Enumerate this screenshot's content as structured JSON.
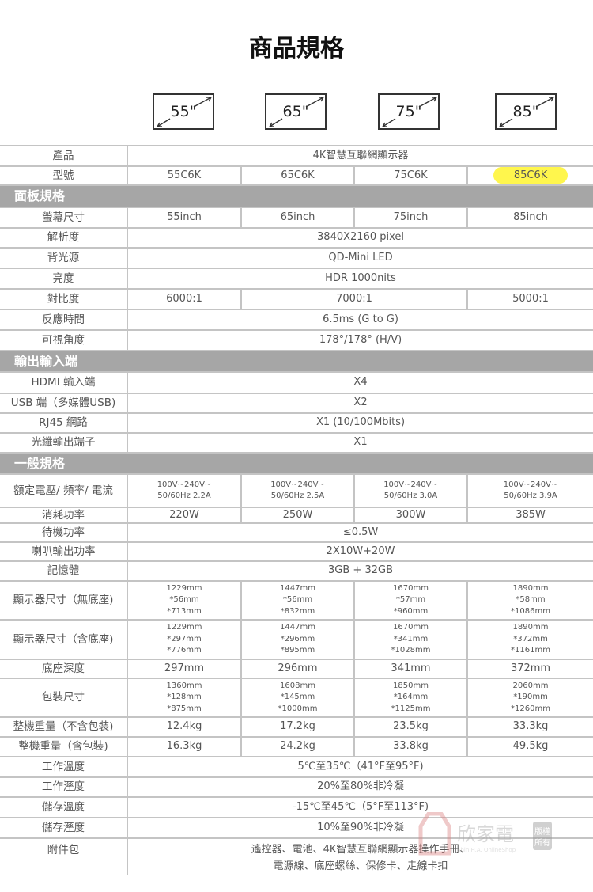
{
  "title": "商品規格",
  "sizes": [
    "55\"",
    "65\"",
    "75\"",
    "85\""
  ],
  "highlight_color": "#fff64d",
  "header_color": "#a6a6a6",
  "rows": [
    {
      "label": "產品",
      "cells": [
        {
          "t": "4K智慧互聯網顯示器",
          "span": 4
        }
      ]
    },
    {
      "label": "型號",
      "cells": [
        {
          "t": "55C6K"
        },
        {
          "t": "65C6K"
        },
        {
          "t": "75C6K"
        },
        {
          "t": "85C6K",
          "hl": true
        }
      ]
    },
    {
      "section": "面板規格"
    },
    {
      "label": "螢幕尺寸",
      "cells": [
        {
          "t": "55inch"
        },
        {
          "t": "65inch"
        },
        {
          "t": "75inch"
        },
        {
          "t": "85inch"
        }
      ]
    },
    {
      "label": "解析度",
      "cells": [
        {
          "t": "3840X2160 pixel",
          "span": 4
        }
      ]
    },
    {
      "label": "背光源",
      "cells": [
        {
          "t": "QD-Mini LED",
          "span": 4
        }
      ]
    },
    {
      "label": "亮度",
      "cells": [
        {
          "t": "HDR 1000nits",
          "span": 4
        }
      ]
    },
    {
      "label": "對比度",
      "cells": [
        {
          "t": "6000:1"
        },
        {
          "t": "7000:1",
          "span": 2
        },
        {
          "t": "5000:1"
        }
      ]
    },
    {
      "label": "反應時間",
      "cells": [
        {
          "t": "6.5ms (G to G)",
          "span": 4
        }
      ]
    },
    {
      "label": "可視角度",
      "cells": [
        {
          "t": "178°/178° (H/V)",
          "span": 4
        }
      ]
    },
    {
      "section": "輸出輸入端"
    },
    {
      "label": "HDMI 輸入端",
      "cells": [
        {
          "t": "X4",
          "span": 4
        }
      ]
    },
    {
      "label": "USB 端（多媒體USB)",
      "cells": [
        {
          "t": "X2",
          "span": 4
        }
      ]
    },
    {
      "label": "RJ45 網路",
      "cells": [
        {
          "t": "X1 (10/100Mbits)",
          "span": 4
        }
      ]
    },
    {
      "label": "光纖輸出端子",
      "cells": [
        {
          "t": "X1",
          "span": 4
        }
      ]
    },
    {
      "section": "一般規格"
    },
    {
      "label": "額定電壓/ 頻率/ 電流",
      "small": true,
      "cells": [
        {
          "t": "100V~240V~\n50/60Hz 2.2A"
        },
        {
          "t": "100V~240V~\n50/60Hz 2.5A"
        },
        {
          "t": "100V~240V~\n50/60Hz 3.0A"
        },
        {
          "t": "100V~240V~\n50/60Hz 3.9A"
        }
      ]
    },
    {
      "label": "消耗功率",
      "cells": [
        {
          "t": "220W"
        },
        {
          "t": "250W"
        },
        {
          "t": "300W"
        },
        {
          "t": "385W"
        }
      ]
    },
    {
      "label": "待機功率",
      "cells": [
        {
          "t": "≤0.5W",
          "span": 4
        }
      ]
    },
    {
      "label": "喇叭輸出功率",
      "cells": [
        {
          "t": "2X10W+20W",
          "span": 4
        }
      ]
    },
    {
      "label": "記憶體",
      "cells": [
        {
          "t": "3GB + 32GB",
          "span": 4
        }
      ]
    },
    {
      "label": "顯示器尺寸（無底座)",
      "small": true,
      "cells": [
        {
          "t": "1229mm\n*56mm\n*713mm"
        },
        {
          "t": "1447mm\n*56mm\n*832mm"
        },
        {
          "t": "1670mm\n*57mm\n*960mm"
        },
        {
          "t": "1890mm\n*58mm\n*1086mm"
        }
      ]
    },
    {
      "label": "顯示器尺寸（含底座)",
      "small": true,
      "cells": [
        {
          "t": "1229mm\n*297mm\n*776mm"
        },
        {
          "t": "1447mm\n*296mm\n*895mm"
        },
        {
          "t": "1670mm\n*341mm\n*1028mm"
        },
        {
          "t": "1890mm\n*372mm\n*1161mm"
        }
      ]
    },
    {
      "label": "底座深度",
      "cells": [
        {
          "t": "297mm"
        },
        {
          "t": "296mm"
        },
        {
          "t": "341mm"
        },
        {
          "t": "372mm"
        }
      ]
    },
    {
      "label": "包裝尺寸",
      "small": true,
      "cells": [
        {
          "t": "1360mm\n*128mm\n*875mm"
        },
        {
          "t": "1608mm\n*145mm\n*1000mm"
        },
        {
          "t": "1850mm\n*164mm\n*1125mm"
        },
        {
          "t": "2060mm\n*190mm\n*1260mm"
        }
      ]
    },
    {
      "label": "整機重量（不含包裝)",
      "cells": [
        {
          "t": "12.4kg"
        },
        {
          "t": "17.2kg"
        },
        {
          "t": "23.5kg"
        },
        {
          "t": "33.3kg"
        }
      ]
    },
    {
      "label": "整機重量（含包裝)",
      "cells": [
        {
          "t": "16.3kg"
        },
        {
          "t": "24.2kg"
        },
        {
          "t": "33.8kg"
        },
        {
          "t": "49.5kg"
        }
      ]
    },
    {
      "label": "工作溫度",
      "cells": [
        {
          "t": "5℃至35℃（41°F至95°F)",
          "span": 4
        }
      ]
    },
    {
      "label": "工作溼度",
      "cells": [
        {
          "t": "20%至80%非冷凝",
          "span": 4
        }
      ]
    },
    {
      "label": "儲存溫度",
      "cells": [
        {
          "t": "-15℃至45℃（5°F至113°F)",
          "span": 4
        }
      ]
    },
    {
      "label": "儲存溼度",
      "cells": [
        {
          "t": "10%至90%非冷凝",
          "span": 4
        }
      ]
    },
    {
      "label": "附件包",
      "last": true,
      "cells": [
        {
          "t": "遙控器、電池、4K智慧互聯網顯示器操作手冊、\n電源線、底座螺絲、保修卡、走線卡扣",
          "span": 4
        }
      ]
    }
  ],
  "watermark": {
    "name": "欣家電",
    "sub": "Shin H.A. OnlineShop",
    "badge": "版權所有"
  }
}
